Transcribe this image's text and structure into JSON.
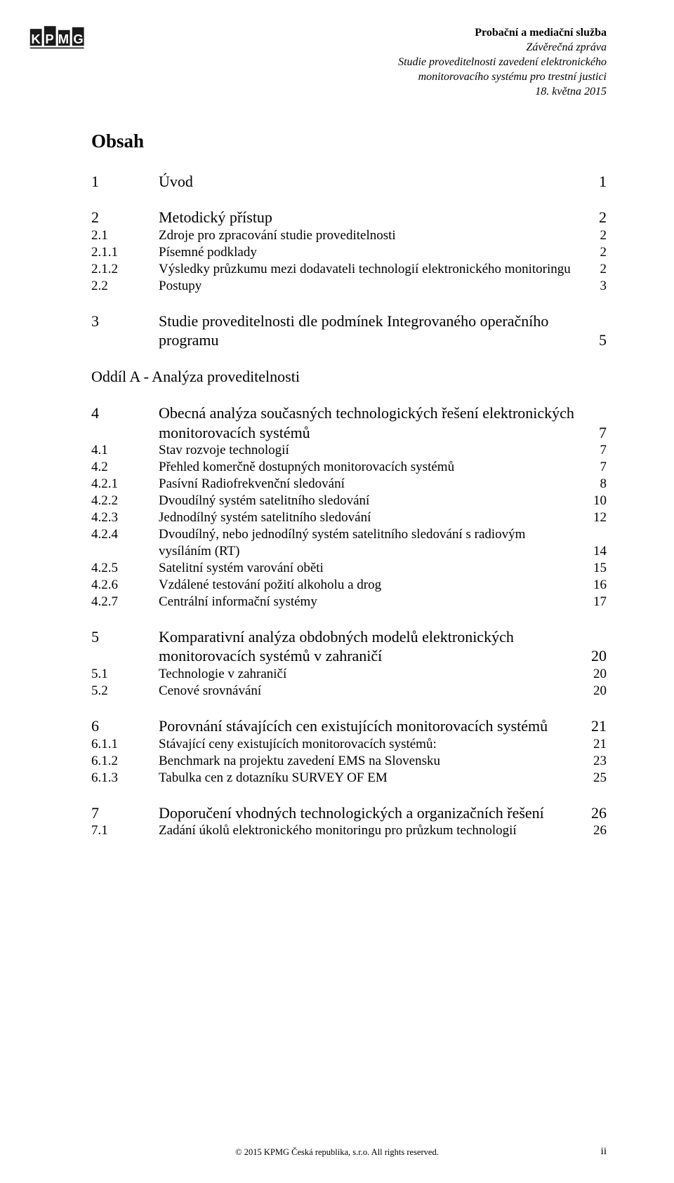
{
  "header": {
    "line1": "Probační a mediační služba",
    "line2": "Závěrečná zpráva",
    "line3": "Studie proveditelnosti zavedení elektronického",
    "line4": "monitorovacího systému pro trestní justici",
    "line5": "18. května 2015"
  },
  "title": "Obsah",
  "toc": [
    {
      "num": "1",
      "label": "Úvod",
      "page": "1",
      "level": 1,
      "gapBefore": 0
    },
    {
      "num": "2",
      "label": "Metodický přístup",
      "page": "2",
      "level": 1,
      "gapBefore": 24
    },
    {
      "num": "2.1",
      "label": "Zdroje pro zpracování studie proveditelnosti",
      "page": "2",
      "level": 2,
      "gapBefore": 0
    },
    {
      "num": "2.1.1",
      "label": "Písemné podklady",
      "page": "2",
      "level": 3,
      "gapBefore": 0
    },
    {
      "num": "2.1.2",
      "label": "Výsledky průzkumu mezi dodavateli technologií elektronického monitoringu",
      "page": "2",
      "level": 3,
      "gapBefore": 0
    },
    {
      "num": "2.2",
      "label": "Postupy",
      "page": "3",
      "level": 2,
      "gapBefore": 0
    },
    {
      "num": "3",
      "label": "Studie proveditelnosti dle podmínek Integrovaného operačního programu",
      "page": "5",
      "level": 1,
      "gapBefore": 24
    },
    {
      "num": "",
      "label": "Oddíl A - Analýza proveditelnosti",
      "page": "",
      "level": "section",
      "gapBefore": 24
    },
    {
      "num": "4",
      "label": "Obecná analýza současných technologických řešení elektronických monitorovacích systémů",
      "page": "7",
      "level": 1,
      "gapBefore": 24
    },
    {
      "num": "4.1",
      "label": "Stav rozvoje technologií",
      "page": "7",
      "level": 2,
      "gapBefore": 0
    },
    {
      "num": "4.2",
      "label": "Přehled komerčně dostupných monitorovacích systémů",
      "page": "7",
      "level": 2,
      "gapBefore": 0
    },
    {
      "num": "4.2.1",
      "label": "Pasívní Radiofrekvenční sledování",
      "page": "8",
      "level": 3,
      "gapBefore": 0
    },
    {
      "num": "4.2.2",
      "label": "Dvoudílný systém satelitního sledování",
      "page": "10",
      "level": 3,
      "gapBefore": 0
    },
    {
      "num": "4.2.3",
      "label": "Jednodílný systém satelitního sledování",
      "page": "12",
      "level": 3,
      "gapBefore": 0
    },
    {
      "num": "4.2.4",
      "label": "Dvoudílný, nebo jednodílný systém satelitního sledování s radiovým vysíláním (RT)",
      "page": "14",
      "level": 3,
      "gapBefore": 0
    },
    {
      "num": "4.2.5",
      "label": "Satelitní systém varování oběti",
      "page": "15",
      "level": 3,
      "gapBefore": 0
    },
    {
      "num": "4.2.6",
      "label": "Vzdálené testování požití alkoholu a drog",
      "page": "16",
      "level": 3,
      "gapBefore": 0
    },
    {
      "num": "4.2.7",
      "label": "Centrální informační systémy",
      "page": "17",
      "level": 3,
      "gapBefore": 0
    },
    {
      "num": "5",
      "label": "Komparativní analýza obdobných modelů elektronických monitorovacích systémů v zahraničí",
      "page": "20",
      "level": 1,
      "gapBefore": 24
    },
    {
      "num": "5.1",
      "label": "Technologie v zahraničí",
      "page": "20",
      "level": 2,
      "gapBefore": 0
    },
    {
      "num": "5.2",
      "label": "Cenové srovnávání",
      "page": "20",
      "level": 2,
      "gapBefore": 0
    },
    {
      "num": "6",
      "label": "Porovnání stávajících cen existujících monitorovacích systémů",
      "page": "21",
      "level": 1,
      "gapBefore": 24
    },
    {
      "num": "6.1.1",
      "label": "Stávající ceny existujících monitorovacích systémů:",
      "page": "21",
      "level": 3,
      "gapBefore": 0
    },
    {
      "num": "6.1.2",
      "label": "Benchmark na projektu zavedení EMS na Slovensku",
      "page": "23",
      "level": 3,
      "gapBefore": 0
    },
    {
      "num": "6.1.3",
      "label": "Tabulka cen z dotazníku SURVEY OF EM",
      "page": "25",
      "level": 3,
      "gapBefore": 0
    },
    {
      "num": "7",
      "label": "Doporučení vhodných technologických a organizačních řešení",
      "page": "26",
      "level": 1,
      "gapBefore": 24
    },
    {
      "num": "7.1",
      "label": "Zadání úkolů elektronického monitoringu pro průzkum technologií",
      "page": "26",
      "level": 2,
      "gapBefore": 0
    }
  ],
  "footer": {
    "copyright": "© 2015 KPMG Česká republika, s.r.o. All rights reserved.",
    "pageNum": "ii"
  },
  "colors": {
    "text": "#000000",
    "background": "#ffffff",
    "logo": "#1a1a1a"
  }
}
